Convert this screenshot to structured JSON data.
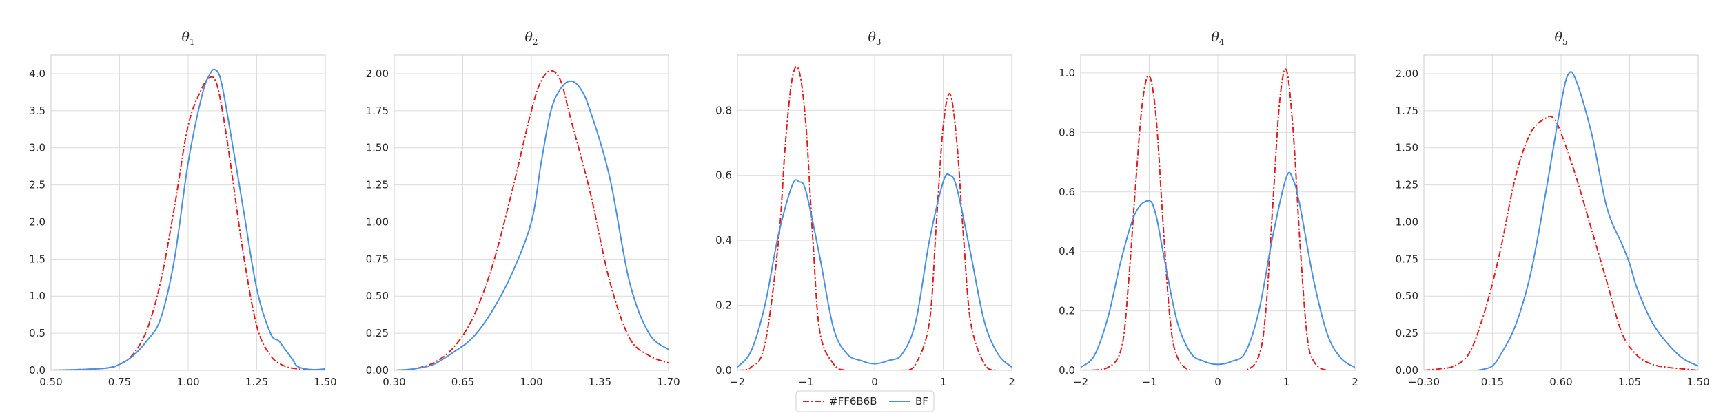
{
  "chart_data": [
    {
      "type": "line",
      "title": "θ",
      "title_sub": "1",
      "xlim": [
        0.5,
        1.5
      ],
      "ylim": [
        0,
        4.25
      ],
      "xticks": [
        "0.50",
        "0.75",
        "1.00",
        "1.25",
        "1.50"
      ],
      "xtick_values": [
        0.5,
        0.75,
        1.0,
        1.25,
        1.5
      ],
      "yticks": [
        "0.0",
        "0.5",
        "1.0",
        "1.5",
        "2.0",
        "2.5",
        "3.0",
        "3.5",
        "4.0"
      ],
      "ytick_values": [
        0,
        0.5,
        1.0,
        1.5,
        2.0,
        2.5,
        3.0,
        3.5,
        4.0
      ],
      "series": [
        {
          "name": "#FF6B6B",
          "x": [
            0.5,
            0.6,
            0.7,
            0.75,
            0.8,
            0.85,
            0.9,
            0.95,
            1.0,
            1.05,
            1.08,
            1.1,
            1.12,
            1.15,
            1.2,
            1.25,
            1.3,
            1.35,
            1.4,
            1.45,
            1.5
          ],
          "y": [
            0.0,
            0.01,
            0.03,
            0.08,
            0.22,
            0.55,
            1.2,
            2.2,
            3.3,
            3.8,
            3.95,
            3.9,
            3.6,
            2.9,
            1.6,
            0.6,
            0.2,
            0.06,
            0.02,
            0.01,
            0.0
          ]
        },
        {
          "name": "BF",
          "x": [
            0.5,
            0.6,
            0.7,
            0.75,
            0.8,
            0.85,
            0.9,
            0.95,
            1.0,
            1.05,
            1.08,
            1.1,
            1.12,
            1.15,
            1.2,
            1.25,
            1.3,
            1.33,
            1.35,
            1.38,
            1.4,
            1.45,
            1.5
          ],
          "y": [
            0.0,
            0.01,
            0.03,
            0.08,
            0.2,
            0.4,
            0.7,
            1.5,
            2.8,
            3.7,
            4.0,
            4.05,
            3.9,
            3.3,
            2.2,
            1.1,
            0.5,
            0.4,
            0.3,
            0.15,
            0.05,
            0.01,
            0.02
          ]
        }
      ]
    },
    {
      "type": "line",
      "title": "θ",
      "title_sub": "2",
      "xlim": [
        0.3,
        1.7
      ],
      "ylim": [
        0,
        2.125
      ],
      "xticks": [
        "0.30",
        "0.65",
        "1.00",
        "1.35",
        "1.70"
      ],
      "xtick_values": [
        0.3,
        0.65,
        1.0,
        1.35,
        1.7
      ],
      "yticks": [
        "0.00",
        "0.25",
        "0.50",
        "0.75",
        "1.00",
        "1.25",
        "1.50",
        "1.75",
        "2.00"
      ],
      "ytick_values": [
        0,
        0.25,
        0.5,
        0.75,
        1.0,
        1.25,
        1.5,
        1.75,
        2.0
      ],
      "series": [
        {
          "name": "#FF6B6B",
          "x": [
            0.3,
            0.4,
            0.5,
            0.6,
            0.7,
            0.8,
            0.9,
            1.0,
            1.05,
            1.1,
            1.15,
            1.2,
            1.3,
            1.4,
            1.5,
            1.6,
            1.7
          ],
          "y": [
            0.0,
            0.01,
            0.05,
            0.15,
            0.35,
            0.7,
            1.2,
            1.75,
            1.95,
            2.02,
            1.95,
            1.7,
            1.2,
            0.6,
            0.22,
            0.1,
            0.05
          ]
        },
        {
          "name": "BF",
          "x": [
            0.3,
            0.4,
            0.5,
            0.6,
            0.7,
            0.8,
            0.9,
            1.0,
            1.05,
            1.1,
            1.15,
            1.2,
            1.25,
            1.3,
            1.4,
            1.5,
            1.6,
            1.7
          ],
          "y": [
            0.0,
            0.01,
            0.04,
            0.12,
            0.22,
            0.4,
            0.65,
            1.0,
            1.4,
            1.75,
            1.9,
            1.95,
            1.9,
            1.75,
            1.3,
            0.6,
            0.25,
            0.14
          ]
        }
      ]
    },
    {
      "type": "line",
      "title": "θ",
      "title_sub": "3",
      "xlim": [
        -2,
        2
      ],
      "ylim": [
        0,
        0.97
      ],
      "xticks": [
        "−2",
        "−1",
        "0",
        "1",
        "2"
      ],
      "xtick_values": [
        -2,
        -1,
        0,
        1,
        2
      ],
      "yticks": [
        "0.0",
        "0.2",
        "0.4",
        "0.6",
        "0.8"
      ],
      "ytick_values": [
        0,
        0.2,
        0.4,
        0.6,
        0.8
      ],
      "series": [
        {
          "name": "#FF6B6B",
          "x": [
            -2.0,
            -1.8,
            -1.6,
            -1.4,
            -1.3,
            -1.2,
            -1.1,
            -1.0,
            -0.9,
            -0.8,
            -0.6,
            -0.4,
            0.0,
            0.4,
            0.6,
            0.8,
            0.9,
            1.0,
            1.1,
            1.2,
            1.3,
            1.4,
            1.6,
            1.8,
            2.0
          ],
          "y": [
            0.0,
            0.01,
            0.08,
            0.4,
            0.7,
            0.9,
            0.92,
            0.75,
            0.4,
            0.12,
            0.02,
            0.0,
            0.0,
            0.0,
            0.02,
            0.15,
            0.45,
            0.75,
            0.85,
            0.7,
            0.4,
            0.15,
            0.02,
            0.0,
            0.0
          ]
        },
        {
          "name": "BF",
          "x": [
            -2.0,
            -1.8,
            -1.6,
            -1.4,
            -1.2,
            -1.1,
            -1.0,
            -0.8,
            -0.6,
            -0.4,
            -0.2,
            0.0,
            0.2,
            0.4,
            0.6,
            0.8,
            1.0,
            1.1,
            1.2,
            1.4,
            1.6,
            1.8,
            2.0
          ],
          "y": [
            0.01,
            0.06,
            0.2,
            0.42,
            0.57,
            0.58,
            0.55,
            0.35,
            0.13,
            0.05,
            0.03,
            0.02,
            0.03,
            0.05,
            0.15,
            0.4,
            0.58,
            0.6,
            0.56,
            0.36,
            0.15,
            0.05,
            0.01
          ]
        }
      ]
    },
    {
      "type": "line",
      "title": "θ",
      "title_sub": "4",
      "xlim": [
        -2,
        2
      ],
      "ylim": [
        0,
        1.06
      ],
      "xticks": [
        "−2",
        "−1",
        "0",
        "1",
        "2"
      ],
      "xtick_values": [
        -2,
        -1,
        0,
        1,
        2
      ],
      "yticks": [
        "0.0",
        "0.2",
        "0.4",
        "0.6",
        "0.8",
        "1.0"
      ],
      "ytick_values": [
        0,
        0.2,
        0.4,
        0.6,
        0.8,
        1.0
      ],
      "series": [
        {
          "name": "#FF6B6B",
          "x": [
            -2.0,
            -1.6,
            -1.4,
            -1.3,
            -1.2,
            -1.1,
            -1.0,
            -0.9,
            -0.8,
            -0.7,
            -0.6,
            -0.4,
            0.0,
            0.4,
            0.6,
            0.7,
            0.8,
            0.9,
            1.0,
            1.1,
            1.2,
            1.3,
            1.4,
            1.6,
            2.0
          ],
          "y": [
            0.0,
            0.01,
            0.08,
            0.3,
            0.62,
            0.9,
            0.99,
            0.85,
            0.5,
            0.18,
            0.05,
            0.0,
            0.0,
            0.0,
            0.05,
            0.2,
            0.55,
            0.9,
            1.01,
            0.8,
            0.42,
            0.12,
            0.03,
            0.0,
            0.0
          ]
        },
        {
          "name": "BF",
          "x": [
            -2.0,
            -1.8,
            -1.6,
            -1.4,
            -1.2,
            -1.0,
            -0.9,
            -0.8,
            -0.6,
            -0.4,
            -0.2,
            0.0,
            0.2,
            0.4,
            0.6,
            0.8,
            1.0,
            1.1,
            1.2,
            1.4,
            1.6,
            1.8,
            2.0
          ],
          "y": [
            0.01,
            0.05,
            0.18,
            0.38,
            0.53,
            0.57,
            0.52,
            0.4,
            0.17,
            0.06,
            0.03,
            0.02,
            0.03,
            0.06,
            0.2,
            0.45,
            0.65,
            0.64,
            0.55,
            0.3,
            0.12,
            0.04,
            0.01
          ]
        }
      ]
    },
    {
      "type": "line",
      "title": "θ",
      "title_sub": "5",
      "xlim": [
        -0.3,
        1.5
      ],
      "ylim": [
        0,
        2.125
      ],
      "xticks": [
        "−0.30",
        "0.15",
        "0.60",
        "1.05",
        "1.50"
      ],
      "xtick_values": [
        -0.3,
        0.15,
        0.6,
        1.05,
        1.5
      ],
      "yticks": [
        "0.00",
        "0.25",
        "0.50",
        "0.75",
        "1.00",
        "1.25",
        "1.50",
        "1.75",
        "2.00"
      ],
      "ytick_values": [
        0,
        0.25,
        0.5,
        0.75,
        1.0,
        1.25,
        1.5,
        1.75,
        2.0
      ],
      "series": [
        {
          "name": "#FF6B6B",
          "x": [
            -0.3,
            -0.2,
            -0.1,
            0.0,
            0.1,
            0.2,
            0.3,
            0.4,
            0.5,
            0.55,
            0.6,
            0.7,
            0.8,
            0.9,
            1.0,
            1.1,
            1.2,
            1.3,
            1.4,
            1.5
          ],
          "y": [
            0.0,
            0.01,
            0.03,
            0.12,
            0.4,
            0.8,
            1.3,
            1.6,
            1.7,
            1.7,
            1.6,
            1.3,
            0.95,
            0.6,
            0.25,
            0.1,
            0.04,
            0.02,
            0.01,
            0.0
          ]
        },
        {
          "name": "BF",
          "x": [
            0.05,
            0.1,
            0.15,
            0.2,
            0.3,
            0.4,
            0.5,
            0.6,
            0.65,
            0.7,
            0.8,
            0.9,
            1.0,
            1.05,
            1.1,
            1.2,
            1.3,
            1.4,
            1.5
          ],
          "y": [
            0.0,
            0.01,
            0.03,
            0.1,
            0.3,
            0.65,
            1.2,
            1.8,
            2.0,
            1.95,
            1.6,
            1.1,
            0.85,
            0.72,
            0.55,
            0.32,
            0.18,
            0.08,
            0.03
          ]
        }
      ]
    }
  ],
  "legend": {
    "placement": "bottom-center",
    "items": [
      {
        "label": "#FF6B6B",
        "color": "#e31a1c",
        "style": "dashdot"
      },
      {
        "label": "BF",
        "color": "#4a90e2",
        "style": "solid"
      }
    ]
  },
  "colors": {
    "grid": "#dcdcdc",
    "spine": "#cccccc",
    "red": "#e31a1c",
    "blue": "#4a90e2"
  }
}
